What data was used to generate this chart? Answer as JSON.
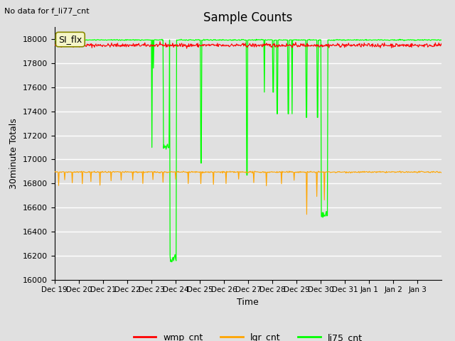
{
  "title": "Sample Counts",
  "top_left_text": "No data for f_li77_cnt",
  "ylabel": "30minute Totals",
  "xlabel": "Time",
  "ylim": [
    16000,
    18100
  ],
  "background_color": "#e0e0e0",
  "plot_bg_color": "#e0e0e0",
  "grid_color": "white",
  "wmp_cnt_base": 17950,
  "wmp_cnt_noise": 8,
  "lgr_cnt_base": 16895,
  "lgr_cnt_noise": 3,
  "li75_cnt_base": 17995,
  "x_tick_labels": [
    "Dec 19",
    "Dec 20",
    "Dec 21",
    "Dec 22",
    "Dec 23",
    "Dec 24",
    "Dec 25",
    "Dec 26",
    "Dec 27",
    "Dec 28",
    "Dec 29",
    "Dec 30",
    "Dec 31",
    "Jan 1",
    "Jan 2",
    "Jan 3"
  ],
  "legend_title": "SI_flx",
  "series_labels": [
    "wmp_cnt",
    "lgr_cnt",
    "li75_cnt"
  ],
  "series_colors": [
    "red",
    "orange",
    "lime"
  ],
  "figsize": [
    6.4,
    4.8
  ],
  "dpi": 100
}
